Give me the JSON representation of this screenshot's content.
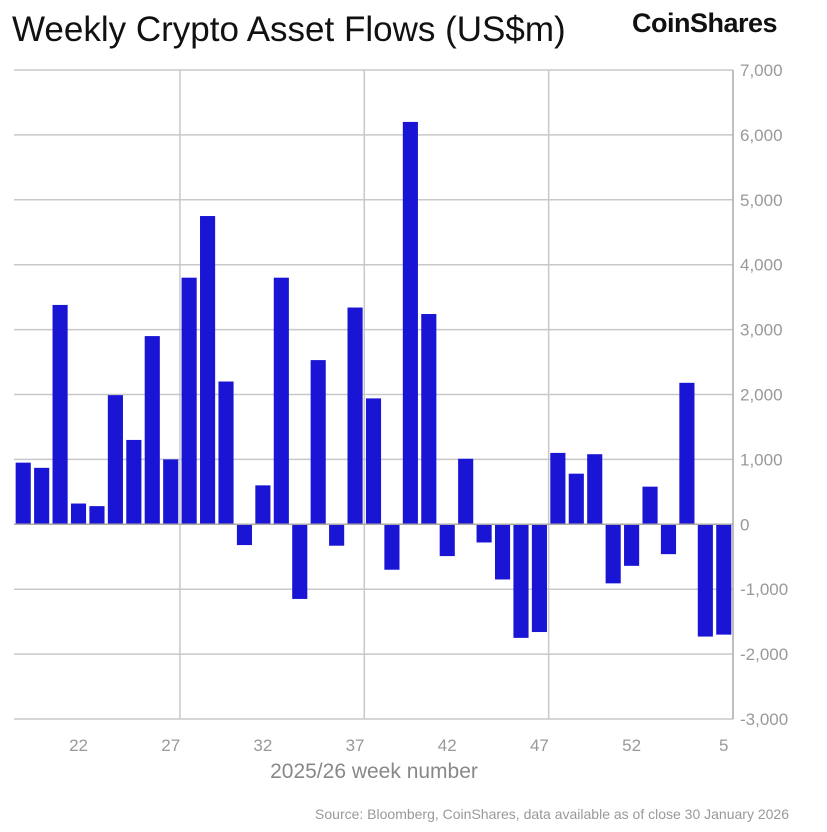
{
  "chart_data": {
    "type": "bar",
    "title": "Weekly Crypto Asset Flows (US$m)",
    "xlabel": "2025/26 week number",
    "ylabel": "",
    "categories": [
      "19",
      "20",
      "21",
      "22",
      "23",
      "24",
      "25",
      "26",
      "27",
      "28",
      "29",
      "30",
      "31",
      "32",
      "33",
      "34",
      "35",
      "36",
      "37",
      "38",
      "39",
      "40",
      "41",
      "42",
      "43",
      "44",
      "45",
      "46",
      "47",
      "48",
      "49",
      "50",
      "51",
      "52",
      "1",
      "2",
      "3",
      "4",
      "5"
    ],
    "values": [
      950,
      870,
      3380,
      320,
      280,
      1990,
      1300,
      2900,
      1000,
      3800,
      4750,
      2200,
      -320,
      600,
      3800,
      -1150,
      2530,
      -330,
      3340,
      1940,
      -700,
      6200,
      3240,
      -490,
      1010,
      -280,
      -850,
      -1750,
      -1660,
      1100,
      780,
      1080,
      -910,
      -640,
      580,
      -460,
      2180,
      -1730,
      -1700
    ],
    "x_tick_labels": [
      "22",
      "27",
      "32",
      "37",
      "42",
      "47",
      "52",
      "5"
    ],
    "y_tick_labels": [
      "7,000",
      "6,000",
      "5,000",
      "4,000",
      "3,000",
      "2,000",
      "1,000",
      "0",
      "-1,000",
      "-2,000",
      "-3,000"
    ],
    "ylim": [
      -3000,
      7000
    ],
    "y_axis_side": "right",
    "grid": true,
    "bar_color": "#1a14d4",
    "grid_color": "#c8c8c8"
  },
  "brand": "CoinShares",
  "source": "Source: Bloomberg, CoinShares, data available as of close 30 January 2026"
}
